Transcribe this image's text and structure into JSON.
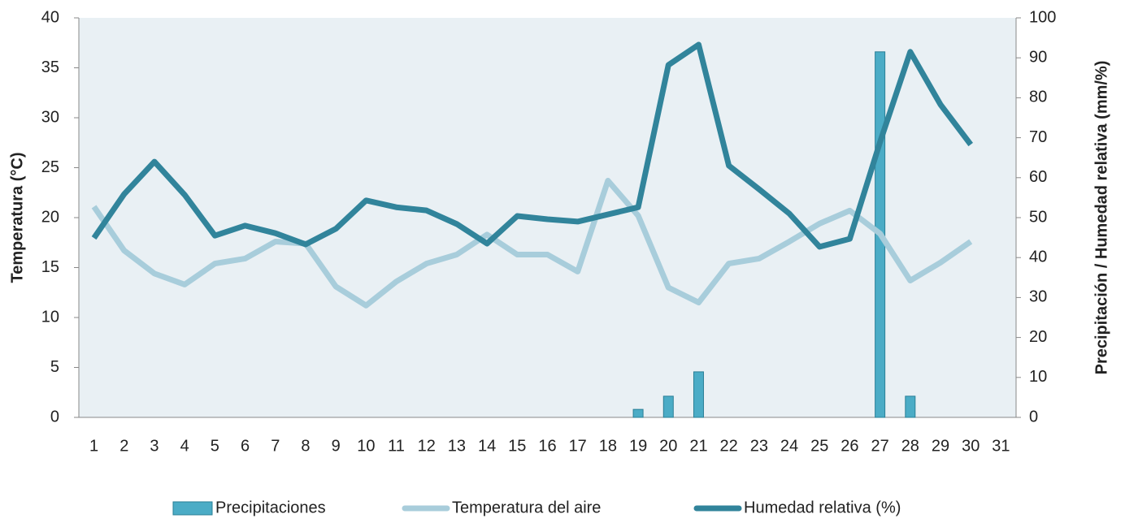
{
  "chart_data": {
    "type": "combo",
    "y_label": "Temperatura (°C)",
    "y2_label": "Precipitación / Humedad relativa (mm/%)",
    "categories": [
      "1",
      "2",
      "3",
      "4",
      "5",
      "6",
      "7",
      "8",
      "9",
      "10",
      "11",
      "12",
      "13",
      "14",
      "15",
      "16",
      "17",
      "18",
      "19",
      "20",
      "21",
      "22",
      "23",
      "24",
      "25",
      "26",
      "27",
      "28",
      "29",
      "30",
      "31"
    ],
    "ylim": [
      0,
      40
    ],
    "yticks": [
      0,
      5,
      10,
      15,
      20,
      25,
      30,
      35,
      40
    ],
    "y2lim": [
      0,
      100
    ],
    "y2ticks": [
      0,
      10,
      20,
      30,
      40,
      50,
      60,
      70,
      80,
      90,
      100
    ],
    "series": [
      {
        "name": "Precipitaciones",
        "type": "bar",
        "axis": "y2",
        "color": "#4bacc6",
        "values": [
          0,
          0,
          0,
          0,
          0,
          0,
          0,
          0,
          0,
          0,
          0,
          0,
          0,
          0,
          0,
          0,
          0,
          0,
          2,
          5.3,
          11.4,
          0,
          0,
          0,
          0,
          0,
          91.5,
          5.3,
          0,
          0,
          null
        ]
      },
      {
        "name": "Temperatura del aire",
        "type": "line",
        "axis": "y",
        "color": "#a8cddb",
        "values": [
          21.1,
          16.7,
          14.4,
          13.3,
          15.4,
          15.9,
          17.6,
          17.4,
          13.1,
          11.2,
          13.6,
          15.4,
          16.3,
          18.3,
          16.3,
          16.3,
          14.6,
          23.7,
          20.2,
          13.0,
          11.5,
          15.4,
          15.9,
          17.6,
          19.4,
          20.7,
          18.4,
          13.7,
          15.5,
          17.6,
          null
        ]
      },
      {
        "name": "Humedad relativa (%)",
        "type": "line",
        "axis": "y2",
        "color": "#31849b",
        "values": [
          44.9,
          55.9,
          64.0,
          55.7,
          45.5,
          48.0,
          46.1,
          43.3,
          47.2,
          54.3,
          52.6,
          51.8,
          48.4,
          43.5,
          50.4,
          49.6,
          49.0,
          50.8,
          52.6,
          88.2,
          93.3,
          63.0,
          57.1,
          51.0,
          42.7,
          44.7,
          68.9,
          91.5,
          78.3,
          68.3,
          null
        ]
      }
    ]
  }
}
